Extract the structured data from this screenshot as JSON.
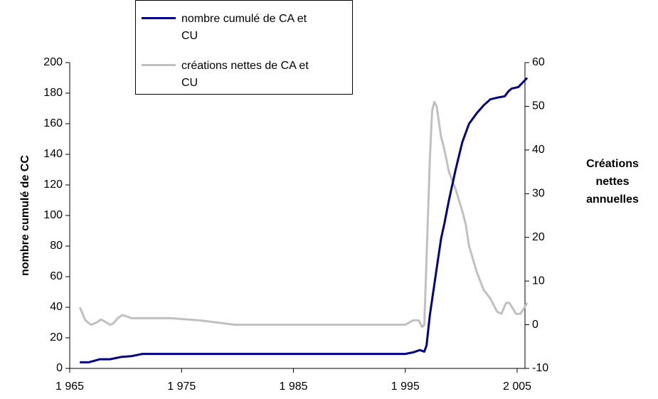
{
  "chart_data": {
    "type": "line",
    "ylabel": "nombre cumulé de CC",
    "y2label": "Créations nettes annuelles",
    "xlim": [
      1965,
      2005.7
    ],
    "xticks": [
      {
        "value": 1965,
        "label": "1 965"
      },
      {
        "value": 1975,
        "label": "1 975"
      },
      {
        "value": 1985,
        "label": "1 985"
      },
      {
        "value": 1995,
        "label": "1 995"
      },
      {
        "value": 2005,
        "label": "2 005"
      }
    ],
    "ylim": [
      0,
      200
    ],
    "yticks": [
      0,
      20,
      40,
      60,
      80,
      100,
      120,
      140,
      160,
      180,
      200
    ],
    "y2lim": [
      -10,
      60
    ],
    "y2ticks": [
      -10,
      0,
      10,
      20,
      30,
      40,
      50,
      60
    ],
    "legend": "top-left",
    "series": [
      {
        "name": "nombre cumulé de CA et CU",
        "color": "#000080",
        "x": [
          1965.9,
          1966.7,
          1967.7,
          1968.6,
          1969.6,
          1970.5,
          1971.5,
          1995.0,
          1995.7,
          1996.3,
          1996.5,
          1996.7,
          1996.9,
          1997.2,
          1997.6,
          1997.9,
          1998.2,
          1998.5,
          1998.9,
          1999.5,
          2000.1,
          2000.7,
          2001.4,
          2002.0,
          2002.6,
          2003.2,
          2003.9,
          2004.2,
          2004.5,
          2005.1,
          2005.9
        ],
        "values": [
          4,
          4,
          6,
          6,
          7.5,
          8,
          9.5,
          9.5,
          10.5,
          12,
          11.5,
          11,
          15,
          35,
          55,
          70,
          85,
          95,
          110,
          130,
          148,
          160,
          167,
          172,
          176,
          177,
          178,
          181,
          183,
          184,
          190
        ]
      },
      {
        "name": "créations nettes de CA et CU",
        "color": "#c0c0c0",
        "axis": "y2",
        "x": [
          1965.9,
          1966.4,
          1966.9,
          1967.4,
          1967.8,
          1968.3,
          1968.6,
          1968.9,
          1969.3,
          1969.7,
          1970.0,
          1970.5,
          1974.0,
          1976.6,
          1979.8,
          1995.0,
          1995.7,
          1996.2,
          1996.5,
          1996.7,
          1996.9,
          1997.2,
          1997.4,
          1997.6,
          1997.8,
          1998.2,
          1998.5,
          1998.9,
          1999.5,
          2000.1,
          2000.4,
          2000.7,
          2001.4,
          2002.0,
          2002.6,
          2003.2,
          2003.6,
          2004.0,
          2004.3,
          2004.9,
          2005.3,
          2005.9
        ],
        "values": [
          4,
          1,
          0,
          0.5,
          1.2,
          0.5,
          0,
          0.3,
          1.5,
          2.2,
          2,
          1.5,
          1.5,
          1,
          0,
          0,
          1,
          1,
          -0.5,
          0,
          15,
          38,
          49,
          51,
          50,
          43,
          40,
          35,
          31,
          26,
          23,
          18,
          12,
          8,
          6,
          3,
          2.5,
          5,
          5,
          2.5,
          2.5,
          5
        ]
      }
    ]
  }
}
